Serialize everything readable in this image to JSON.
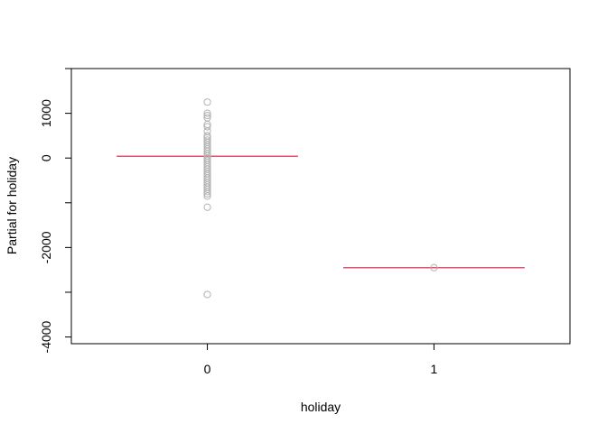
{
  "chart_data": {
    "type": "scatter",
    "title": "",
    "xlabel": "holiday",
    "ylabel": "Partial for holiday",
    "xlim": [
      -0.6,
      1.6
    ],
    "ylim": [
      -4150,
      2000
    ],
    "x_ticks": [
      0,
      1
    ],
    "x_tick_labels": [
      "0",
      "1"
    ],
    "y_ticks": [
      -4000,
      -2000,
      0,
      1000
    ],
    "y_tick_labels": [
      "-4000",
      "-2000",
      "0",
      "1000"
    ],
    "grid": false,
    "colors": {
      "points": "#b3b3b3",
      "fit": "#df536b",
      "axis": "#000000"
    },
    "groups": [
      {
        "x": 0,
        "fit": 40,
        "fit_range": [
          -0.4,
          0.4
        ],
        "points": [
          1250,
          1000,
          950,
          900,
          750,
          700,
          600,
          500,
          450,
          400,
          350,
          300,
          250,
          200,
          150,
          100,
          50,
          0,
          -50,
          -100,
          -150,
          -200,
          -250,
          -300,
          -350,
          -400,
          -450,
          -500,
          -550,
          -600,
          -650,
          -700,
          -750,
          -800,
          -850,
          -1100,
          -3050
        ]
      },
      {
        "x": 1,
        "fit": -2450,
        "fit_range": [
          0.6,
          1.4
        ],
        "points": [
          -2450
        ]
      }
    ]
  }
}
